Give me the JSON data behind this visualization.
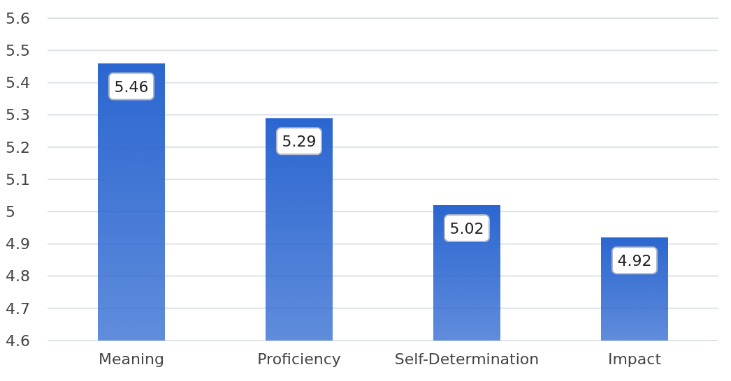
{
  "chart_data": {
    "type": "bar",
    "categories": [
      "Meaning",
      "Proficiency",
      "Self-Determination",
      "Impact"
    ],
    "values": [
      5.46,
      5.29,
      5.02,
      4.92
    ],
    "color": "#2b66d0",
    "ylim": [
      4.6,
      5.6
    ],
    "yticks": [
      4.6,
      4.7,
      4.8,
      4.9,
      5,
      5.1,
      5.2,
      5.3,
      5.4,
      5.5,
      5.6
    ],
    "grid": "y",
    "data_labels": true
  }
}
